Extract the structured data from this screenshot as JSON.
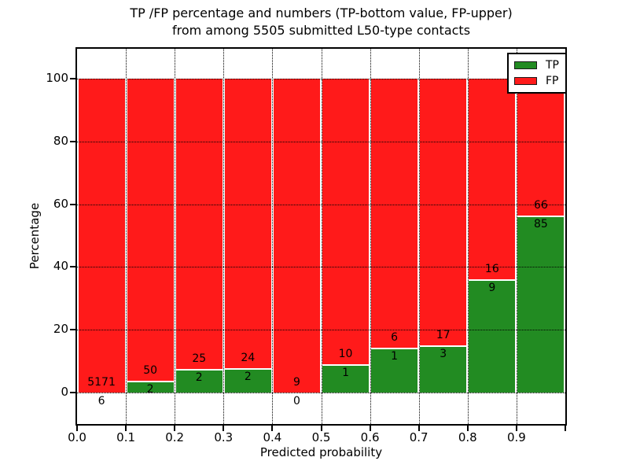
{
  "chart_data": {
    "type": "bar",
    "variant": "stacked-percentage-histogram",
    "title_lines": [
      "TP /FP percentage and numbers (TP-bottom value, FP-upper)",
      "from among 5505 submitted L50-type contacts"
    ],
    "xlabel": "Predicted probability",
    "ylabel": "Percentage",
    "x_tick_labels": [
      "0.0",
      "0.1",
      "0.2",
      "0.3",
      "0.4",
      "0.5",
      "0.6",
      "0.7",
      "0.8",
      "0.9"
    ],
    "y_ticks": [
      0,
      20,
      40,
      60,
      80,
      100
    ],
    "xlim": [
      0.0,
      1.0
    ],
    "ylim": [
      -10,
      110
    ],
    "bin_width": 0.1,
    "grid": "dotted-black",
    "background_color": "#ffffff",
    "total_contacts": 5505,
    "series": [
      {
        "name": "TP",
        "color": "#228b22",
        "counts": [
          6,
          2,
          2,
          2,
          0,
          1,
          1,
          3,
          9,
          85
        ]
      },
      {
        "name": "FP",
        "color": "#ff1a1a",
        "counts": [
          5171,
          50,
          25,
          24,
          9,
          10,
          6,
          17,
          16,
          66
        ]
      }
    ],
    "tp_percent_of_bin": [
      0.12,
      3.85,
      7.41,
      7.69,
      0.0,
      9.09,
      14.29,
      15.0,
      36.0,
      56.29
    ],
    "legend": {
      "position": "upper-right",
      "entries": [
        "TP",
        "FP"
      ]
    }
  }
}
